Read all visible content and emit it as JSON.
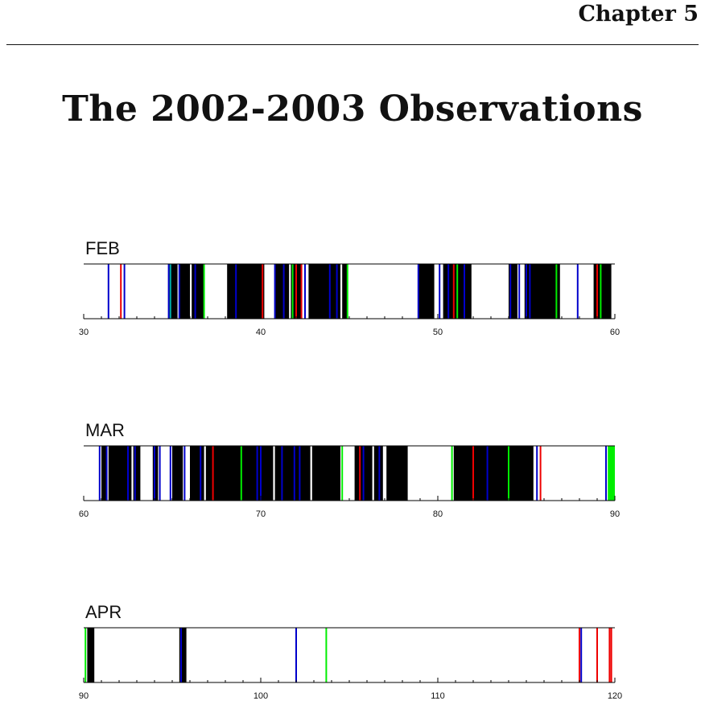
{
  "header": {
    "chapter": "Chapter 5"
  },
  "title": "The 2002-2003 Observations",
  "colors": {
    "black": "#000000",
    "blue": "#0000cc",
    "green": "#00ee00",
    "red": "#ee0000",
    "cyan": "#00aaaa"
  },
  "chart_data": [
    {
      "type": "timeline",
      "label": "FEB",
      "xlim": [
        30,
        60
      ],
      "tick_labels": [
        "30",
        "40",
        "50",
        "60"
      ],
      "blocks": [
        [
          34.8,
          35.3
        ],
        [
          35.4,
          36.0
        ],
        [
          36.1,
          36.8
        ],
        [
          38.1,
          40.2
        ],
        [
          40.8,
          41.6
        ],
        [
          41.7,
          42.3
        ],
        [
          42.7,
          44.5
        ],
        [
          44.6,
          44.9
        ],
        [
          48.9,
          49.8
        ],
        [
          50.3,
          51.9
        ],
        [
          54.0,
          54.5
        ],
        [
          54.9,
          56.9
        ],
        [
          58.8,
          59.8
        ]
      ],
      "lines": [
        {
          "x": 31.4,
          "c": "blue"
        },
        {
          "x": 32.1,
          "c": "red"
        },
        {
          "x": 32.3,
          "c": "blue"
        },
        {
          "x": 34.8,
          "c": "blue"
        },
        {
          "x": 34.9,
          "c": "cyan"
        },
        {
          "x": 35.4,
          "c": "blue"
        },
        {
          "x": 36.3,
          "c": "blue"
        },
        {
          "x": 36.8,
          "c": "green"
        },
        {
          "x": 38.6,
          "c": "blue"
        },
        {
          "x": 40.1,
          "c": "red"
        },
        {
          "x": 40.8,
          "c": "blue"
        },
        {
          "x": 41.3,
          "c": "blue"
        },
        {
          "x": 41.8,
          "c": "green"
        },
        {
          "x": 42.0,
          "c": "red"
        },
        {
          "x": 42.3,
          "c": "red"
        },
        {
          "x": 42.5,
          "c": "blue"
        },
        {
          "x": 43.9,
          "c": "blue"
        },
        {
          "x": 44.3,
          "c": "blue"
        },
        {
          "x": 44.9,
          "c": "green"
        },
        {
          "x": 48.9,
          "c": "blue"
        },
        {
          "x": 50.1,
          "c": "blue"
        },
        {
          "x": 50.6,
          "c": "blue"
        },
        {
          "x": 50.9,
          "c": "red"
        },
        {
          "x": 51.1,
          "c": "green"
        },
        {
          "x": 51.5,
          "c": "blue"
        },
        {
          "x": 54.1,
          "c": "blue"
        },
        {
          "x": 54.6,
          "c": "blue"
        },
        {
          "x": 55.0,
          "c": "blue"
        },
        {
          "x": 55.2,
          "c": "blue"
        },
        {
          "x": 56.7,
          "c": "green"
        },
        {
          "x": 57.9,
          "c": "blue"
        },
        {
          "x": 59.0,
          "c": "red"
        },
        {
          "x": 59.2,
          "c": "green"
        }
      ]
    },
    {
      "type": "timeline",
      "label": "MAR",
      "xlim": [
        60,
        90
      ],
      "tick_labels": [
        "60",
        "70",
        "80",
        "90"
      ],
      "blocks": [
        [
          61.0,
          61.3
        ],
        [
          61.4,
          62.7
        ],
        [
          62.8,
          63.2
        ],
        [
          63.9,
          64.2
        ],
        [
          65.0,
          65.6
        ],
        [
          66.0,
          66.8
        ],
        [
          66.9,
          70.7
        ],
        [
          70.8,
          72.8
        ],
        [
          72.9,
          74.5
        ],
        [
          75.3,
          76.3
        ],
        [
          76.4,
          76.9
        ],
        [
          77.1,
          78.3
        ],
        [
          80.9,
          85.4
        ]
      ],
      "lines": [
        {
          "x": 60.9,
          "c": "blue"
        },
        {
          "x": 61.3,
          "c": "blue"
        },
        {
          "x": 62.5,
          "c": "blue"
        },
        {
          "x": 62.9,
          "c": "blue"
        },
        {
          "x": 64.0,
          "c": "blue"
        },
        {
          "x": 64.3,
          "c": "blue"
        },
        {
          "x": 64.9,
          "c": "blue"
        },
        {
          "x": 65.7,
          "c": "blue"
        },
        {
          "x": 66.6,
          "c": "blue"
        },
        {
          "x": 67.3,
          "c": "red"
        },
        {
          "x": 68.9,
          "c": "green"
        },
        {
          "x": 69.8,
          "c": "blue"
        },
        {
          "x": 70.0,
          "c": "blue"
        },
        {
          "x": 71.2,
          "c": "blue"
        },
        {
          "x": 71.9,
          "c": "blue"
        },
        {
          "x": 72.2,
          "c": "blue"
        },
        {
          "x": 74.6,
          "c": "green"
        },
        {
          "x": 75.6,
          "c": "red"
        },
        {
          "x": 75.8,
          "c": "blue"
        },
        {
          "x": 76.7,
          "c": "blue"
        },
        {
          "x": 80.8,
          "c": "green"
        },
        {
          "x": 82.0,
          "c": "red"
        },
        {
          "x": 82.8,
          "c": "blue"
        },
        {
          "x": 84.0,
          "c": "green"
        },
        {
          "x": 85.6,
          "c": "blue"
        },
        {
          "x": 85.8,
          "c": "red"
        },
        {
          "x": 89.5,
          "c": "blue"
        }
      ],
      "green_blocks": [
        [
          89.6,
          90.0
        ]
      ]
    },
    {
      "type": "timeline",
      "label": "APR",
      "xlim": [
        90,
        120
      ],
      "tick_labels": [
        "90",
        "100",
        "110",
        "120"
      ],
      "blocks": [
        [
          90.2,
          90.6
        ],
        [
          95.4,
          95.8
        ]
      ],
      "lines": [
        {
          "x": 90.1,
          "c": "green"
        },
        {
          "x": 95.5,
          "c": "blue"
        },
        {
          "x": 102.0,
          "c": "blue"
        },
        {
          "x": 103.7,
          "c": "green"
        },
        {
          "x": 118.0,
          "c": "red"
        },
        {
          "x": 118.1,
          "c": "blue"
        },
        {
          "x": 119.0,
          "c": "red"
        },
        {
          "x": 119.7,
          "c": "red"
        },
        {
          "x": 119.8,
          "c": "red"
        }
      ]
    }
  ]
}
